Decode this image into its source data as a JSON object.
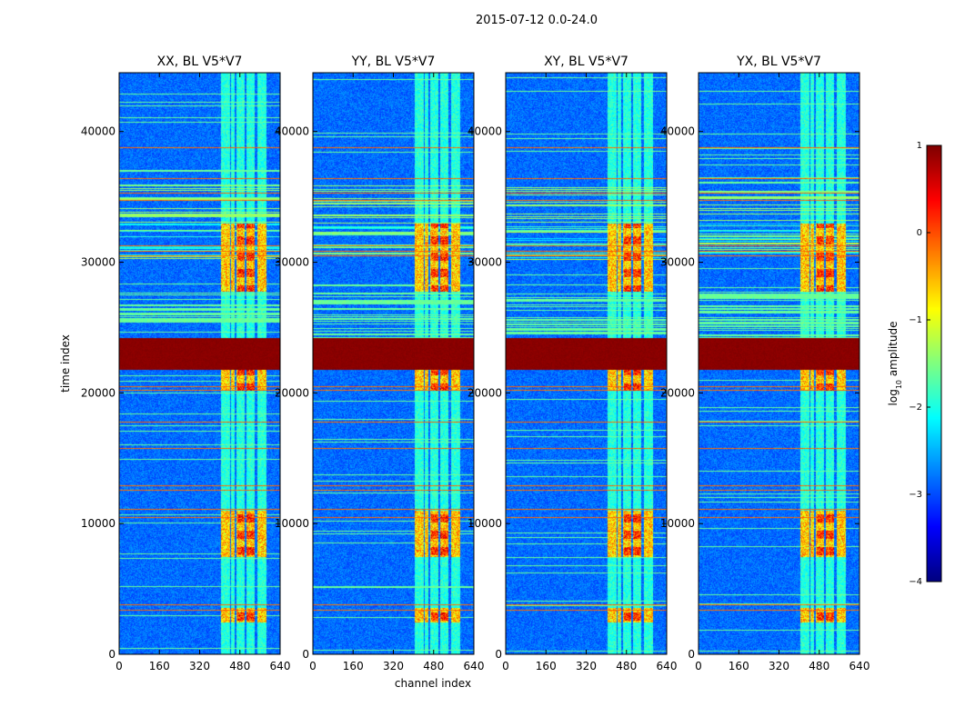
{
  "figure": {
    "suptitle": "2015-07-12 0.0-24.0"
  },
  "chart_data": {
    "type": "heatmap",
    "title": "2015-07-12 0.0-24.0",
    "xlabel": "channel index",
    "ylabel": "time index",
    "xlim": [
      0,
      640
    ],
    "ylim": [
      0,
      44500
    ],
    "xticks": [
      0,
      160,
      320,
      480,
      640
    ],
    "yticks": [
      0,
      10000,
      20000,
      30000,
      40000
    ],
    "panels": [
      {
        "title": "XX, BL V5*V7",
        "pol": "XX"
      },
      {
        "title": "YY, BL V5*V7",
        "pol": "YY"
      },
      {
        "title": "XY, BL V5*V7",
        "pol": "XY"
      },
      {
        "title": "YX, BL V5*V7",
        "pol": "YX"
      }
    ],
    "colorbar": {
      "label": "log10 amplitude",
      "label_base": "log",
      "label_sub": "10",
      "label_rest": " amplitude",
      "range": [
        -4,
        1
      ],
      "ticks": [
        1,
        0,
        -1,
        -2,
        -3,
        -4
      ],
      "tick_labels": [
        "1",
        "0",
        "−1",
        "−2",
        "−3",
        "−4"
      ],
      "colormap": "jet"
    },
    "features": {
      "rfi_channel_bands": [
        [
          405,
          440
        ],
        [
          445,
          460
        ],
        [
          465,
          500
        ],
        [
          505,
          540
        ],
        [
          550,
          585
        ]
      ],
      "saturated_time_range": [
        21800,
        24200
      ],
      "strong_time_ranges": [
        [
          2500,
          3600
        ],
        [
          7500,
          11000
        ],
        [
          27800,
          33000
        ],
        [
          20200,
          22000
        ]
      ],
      "hot_time_rows": [
        3400,
        3800,
        10500,
        11100,
        12600,
        12900,
        15800,
        17800,
        20200,
        20500,
        30500,
        30900,
        31300,
        34800,
        35300,
        36400,
        38800
      ]
    }
  }
}
